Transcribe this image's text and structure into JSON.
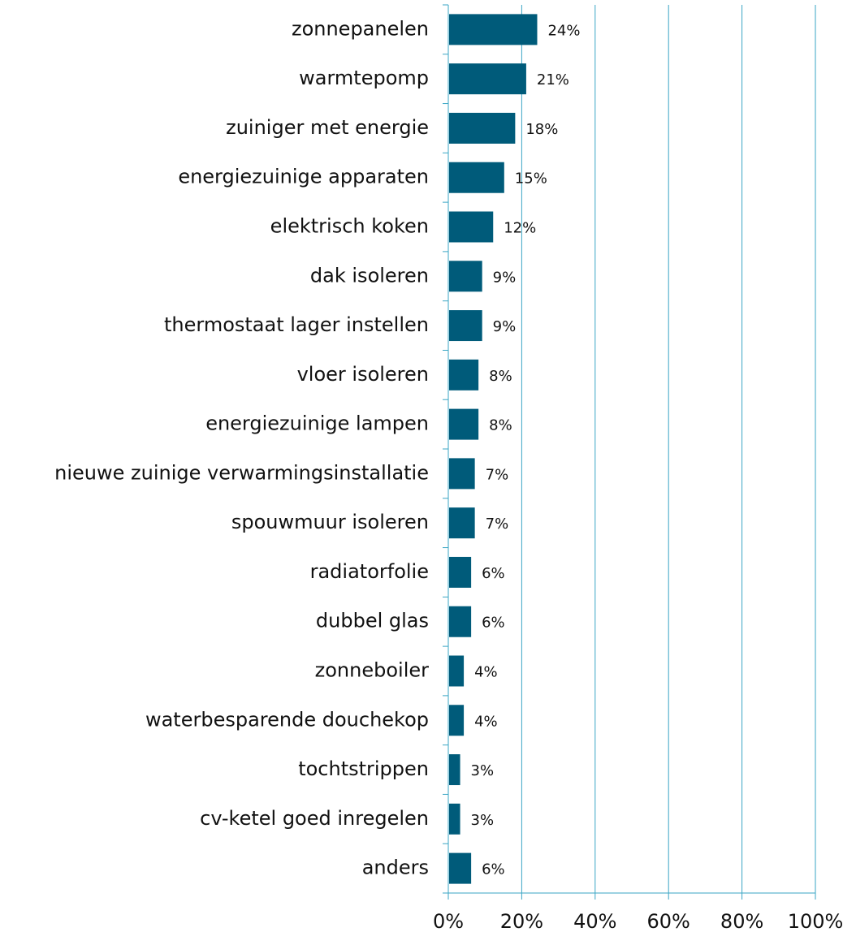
{
  "chart_data": {
    "type": "barh",
    "categories": [
      "zonnepanelen",
      "warmtepomp",
      "zuiniger met energie",
      "energiezuinige apparaten",
      "elektrisch koken",
      "dak isoleren",
      "thermostaat lager instellen",
      "vloer isoleren",
      "energiezuinige lampen",
      "nieuwe zuinige verwarmingsinstallatie",
      "spouwmuur isoleren",
      "radiatorfolie",
      "dubbel glas",
      "zonneboiler",
      "waterbesparende douchekop",
      "tochtstrippen",
      "cv-ketel goed inregelen",
      "anders"
    ],
    "values": [
      24,
      21,
      18,
      15,
      12,
      9,
      9,
      8,
      8,
      7,
      7,
      6,
      6,
      4,
      4,
      3,
      3,
      6
    ],
    "value_labels": [
      "24%",
      "21%",
      "18%",
      "15%",
      "12%",
      "9%",
      "9%",
      "8%",
      "8%",
      "7%",
      "7%",
      "6%",
      "6%",
      "4%",
      "4%",
      "3%",
      "3%",
      "6%"
    ],
    "color": "#005b7a",
    "xlim": [
      0,
      100
    ],
    "xticks": [
      {
        "value": 0,
        "label": "0%"
      },
      {
        "value": 20,
        "label": "20%"
      },
      {
        "value": 40,
        "label": "40%"
      },
      {
        "value": 60,
        "label": "60%"
      },
      {
        "value": 80,
        "label": "80%"
      },
      {
        "value": 100,
        "label": "100%"
      }
    ],
    "grid": true
  }
}
